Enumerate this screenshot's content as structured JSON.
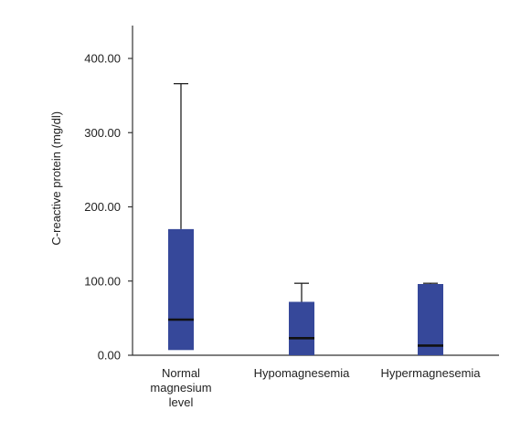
{
  "chart_data": {
    "type": "boxplot",
    "ylabel": "C-reactive protein (mg/dl)",
    "xlabel": "",
    "ylim": [
      0,
      440
    ],
    "yticks": [
      "0.00",
      "100.00",
      "200.00",
      "300.00",
      "400.00"
    ],
    "ytick_values": [
      0,
      100,
      200,
      300,
      400
    ],
    "categories": [
      [
        "Normal",
        "magnesium",
        "level"
      ],
      [
        "Hypomagnesemia"
      ],
      [
        "Hypermagnesemia"
      ]
    ],
    "boxes": [
      {
        "whisker_low": 7,
        "q1": 7,
        "median": 48,
        "q3": 170,
        "whisker_high": 366
      },
      {
        "whisker_low": 0,
        "q1": 0,
        "median": 23,
        "q3": 72,
        "whisker_high": 97
      },
      {
        "whisker_low": 0,
        "q1": 0,
        "median": 13,
        "q3": 96,
        "whisker_high": 97
      }
    ],
    "box_color": "#36489a",
    "median_color": "#111111",
    "axis_color": "#333333",
    "grid": false
  }
}
